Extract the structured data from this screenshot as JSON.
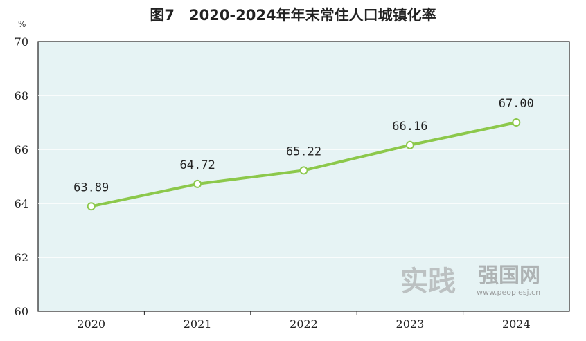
{
  "chart_data": {
    "type": "line",
    "title": "图7　2020-2024年年末常住人口城镇化率",
    "ylabel": "%",
    "xlabel": "",
    "categories": [
      "2020",
      "2021",
      "2022",
      "2023",
      "2024"
    ],
    "series": [
      {
        "values": [
          63.89,
          64.72,
          65.22,
          66.16,
          67.0
        ],
        "labels": [
          "63.89",
          "64.72",
          "65.22",
          "66.16",
          "67.00"
        ]
      }
    ],
    "ylim": [
      60,
      70
    ],
    "yticks": [
      60,
      62,
      64,
      66,
      68,
      70
    ],
    "grid": true,
    "plot_background": "#e6f3f4",
    "line_color": "#8cc84b"
  },
  "watermark": {
    "brand_cn": "实践强国网",
    "url": "www.peoplesj.cn"
  }
}
